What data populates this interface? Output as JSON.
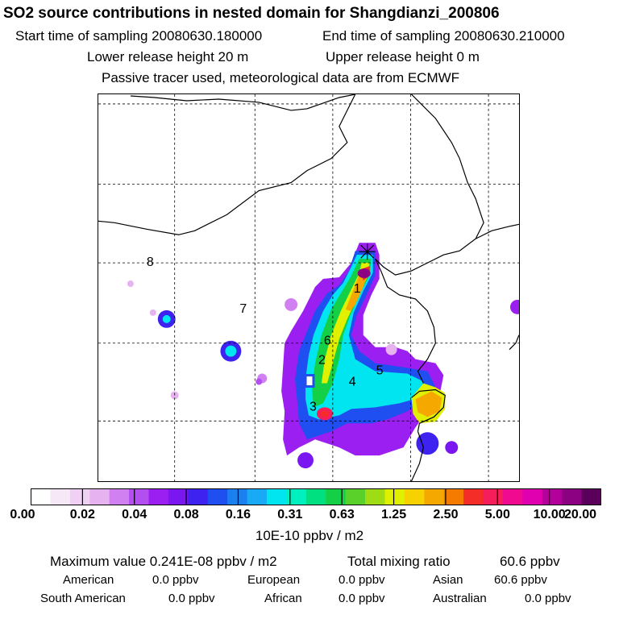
{
  "title": "SO2 source contributions in nested domain for Shangdianzi_200806",
  "start_time": "Start time of sampling 20080630.180000",
  "end_time": "End time of sampling 20080630.210000",
  "lower_release": "Lower release height   20 m",
  "upper_release": "Upper release height    0 m",
  "tracer_note": "Passive tracer used, meteorological data are from ECMWF",
  "map": {
    "site_marker": "star-icon",
    "region_labels": [
      "1",
      "2",
      "4",
      "5",
      "6",
      "7",
      "8",
      "3"
    ]
  },
  "colorbar": {
    "colors": [
      "#ffffff",
      "#f7e8f7",
      "#f0d0f5",
      "#e6b3f0",
      "#d080f0",
      "#b34ff0",
      "#9b1ff0",
      "#7a16f0",
      "#3e22f0",
      "#1f4ff0",
      "#1a80f0",
      "#19aaf5",
      "#00e5f0",
      "#00f0c0",
      "#00e080",
      "#14d046",
      "#5ad02a",
      "#a0dc14",
      "#e1f000",
      "#f5d200",
      "#f5a800",
      "#f57a00",
      "#f52d28",
      "#f51e5a",
      "#f00a90",
      "#e000b0",
      "#b4009a",
      "#8c0082",
      "#5a005a"
    ],
    "tick_labels": [
      "0.00",
      "0.02",
      "0.04",
      "0.08",
      "0.16",
      "0.31",
      "0.63",
      "1.25",
      "2.50",
      "5.00",
      "10.00",
      "20.00"
    ],
    "units": "10E-10 ppbv / m2"
  },
  "summary": {
    "max_value": "Maximum value  0.241E-08 ppbv / m2",
    "total": "Total mixing ratio",
    "total_value": "60.6 ppbv",
    "american_label": "American",
    "american_value": "0.0 ppbv",
    "european_label": "European",
    "european_value": "0.0 ppbv",
    "asian_label": "Asian",
    "asian_value": "60.6 ppbv",
    "south_american_label": "South American",
    "south_american_value": "0.0 ppbv",
    "african_label": "African",
    "african_value": "0.0 ppbv",
    "australian_label": "Australian",
    "australian_value": "0.0 ppbv"
  }
}
